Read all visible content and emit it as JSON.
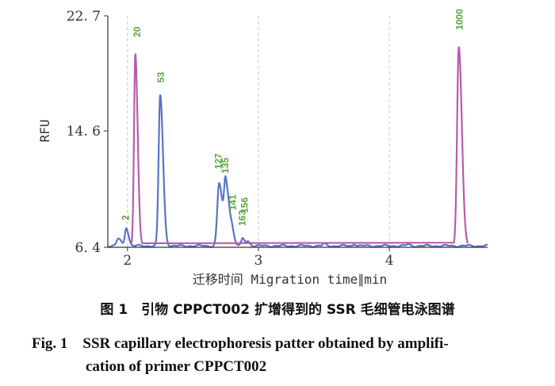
{
  "chart_data": {
    "type": "line",
    "xlabel": "迁移时间 Migration time∥min",
    "ylabel": "RFU",
    "xlim": [
      1.85,
      4.75
    ],
    "ylim": [
      6.4,
      22.7
    ],
    "x_ticks": [
      2,
      3,
      4
    ],
    "y_ticks": [
      6.4,
      14.6,
      22.7
    ],
    "series": [
      {
        "color": "#5b73c4",
        "peaks": [
          {
            "x": 1.93,
            "height": 7.0,
            "width": 0.012
          },
          {
            "x": 1.99,
            "height": 7.8,
            "width": 0.01
          },
          {
            "x": 2.25,
            "height": 17.1,
            "width": 0.012
          },
          {
            "x": 2.7,
            "height": 10.9,
            "width": 0.014
          },
          {
            "x": 2.75,
            "height": 10.7,
            "width": 0.012
          },
          {
            "x": 2.78,
            "height": 7.5,
            "width": 0.012
          },
          {
            "x": 2.8,
            "height": 7.1,
            "width": 0.01
          },
          {
            "x": 2.88,
            "height": 7.0,
            "width": 0.01
          },
          {
            "x": 2.92,
            "height": 6.8,
            "width": 0.01
          },
          {
            "x": 3.5,
            "height": 6.65,
            "width": 0.008
          },
          {
            "x": 3.73,
            "height": 6.65,
            "width": 0.008
          },
          {
            "x": 4.14,
            "height": 6.6,
            "width": 0.01
          }
        ],
        "baseline": 6.5
      },
      {
        "color": "#b85ca8",
        "peaks": [
          {
            "x": 2.06,
            "height": 20.0,
            "width": 0.01
          },
          {
            "x": 4.53,
            "height": 20.5,
            "width": 0.013
          }
        ],
        "baseline": 6.5
      }
    ],
    "peak_labels": [
      {
        "x": 1.99,
        "y": 8.3,
        "text": "2"
      },
      {
        "x": 2.08,
        "y": 21.2,
        "text": "20"
      },
      {
        "x": 2.26,
        "y": 18.0,
        "text": "53"
      },
      {
        "x": 2.7,
        "y": 11.9,
        "text": "127"
      },
      {
        "x": 2.75,
        "y": 11.6,
        "text": "135"
      },
      {
        "x": 2.81,
        "y": 9.0,
        "text": "141"
      },
      {
        "x": 2.9,
        "y": 8.8,
        "text": "156"
      },
      {
        "x": 2.88,
        "y": 7.9,
        "text": "163"
      },
      {
        "x": 4.54,
        "y": 21.7,
        "text": "1000"
      }
    ]
  },
  "caption": {
    "cn": "图 1　引物 CPPCT002 扩增得到的 SSR 毛细管电泳图谱",
    "en_line1": "Fig. 1　SSR capillary electrophoresis patter obtained by amplifi-",
    "en_line2": "cation of primer CPPCT002"
  }
}
